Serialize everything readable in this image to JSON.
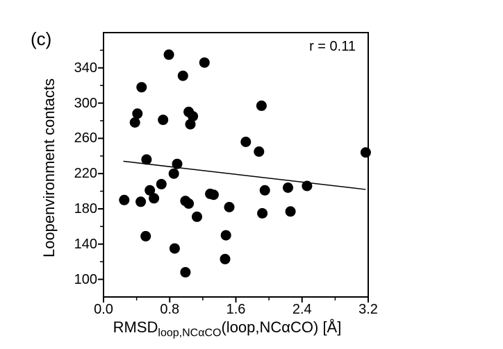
{
  "figure": {
    "panel_label": "(c)",
    "annotation": "r = 0.11"
  },
  "chart_data": {
    "type": "scatter",
    "title": "",
    "panel_label": "(c)",
    "annotation": "r = 0.11",
    "xlabel_main": "RMSD",
    "xlabel_sub": "loop,NCαCO",
    "xlabel_rest": "(loop,NCαCO) [Å]",
    "ylabel": "Loopenvironment contacts",
    "xlim": [
      0,
      3.2
    ],
    "ylim": [
      80,
      380
    ],
    "x_tick_labels": [
      "0.0",
      "0.8",
      "1.6",
      "2.4",
      "3.2"
    ],
    "x_ticks": [
      0.0,
      0.8,
      1.6,
      2.4,
      3.2
    ],
    "x_minor_ticks": [
      0.4,
      1.2,
      2.0,
      2.8
    ],
    "y_tick_labels": [
      "100",
      "140",
      "180",
      "220",
      "260",
      "300",
      "340"
    ],
    "y_ticks": [
      100,
      140,
      180,
      220,
      260,
      300,
      340
    ],
    "y_minor_ticks": [
      120,
      160,
      200,
      240,
      280,
      320,
      360
    ],
    "grid": false,
    "legend": null,
    "point_color": "#000000",
    "line_color": "#000000",
    "points": [
      [
        0.79,
        355
      ],
      [
        1.22,
        346
      ],
      [
        0.96,
        331
      ],
      [
        0.46,
        318
      ],
      [
        0.41,
        288
      ],
      [
        0.38,
        278
      ],
      [
        0.72,
        281
      ],
      [
        1.03,
        290
      ],
      [
        1.08,
        285
      ],
      [
        1.05,
        276
      ],
      [
        1.91,
        297
      ],
      [
        1.72,
        256
      ],
      [
        1.88,
        245
      ],
      [
        3.17,
        244
      ],
      [
        0.52,
        236
      ],
      [
        0.89,
        231
      ],
      [
        0.85,
        220
      ],
      [
        0.7,
        208
      ],
      [
        0.56,
        201
      ],
      [
        0.61,
        192
      ],
      [
        0.25,
        190
      ],
      [
        0.45,
        188
      ],
      [
        0.99,
        189
      ],
      [
        1.03,
        186
      ],
      [
        1.29,
        197
      ],
      [
        1.33,
        196
      ],
      [
        1.52,
        182
      ],
      [
        1.13,
        171
      ],
      [
        0.51,
        149
      ],
      [
        0.86,
        135
      ],
      [
        1.48,
        150
      ],
      [
        1.47,
        123
      ],
      [
        0.99,
        108
      ],
      [
        1.95,
        201
      ],
      [
        2.23,
        204
      ],
      [
        2.46,
        206
      ],
      [
        1.92,
        175
      ],
      [
        2.26,
        177
      ]
    ],
    "trend_line": {
      "x1": 0.24,
      "y1": 234,
      "x2": 3.17,
      "y2": 202
    }
  }
}
